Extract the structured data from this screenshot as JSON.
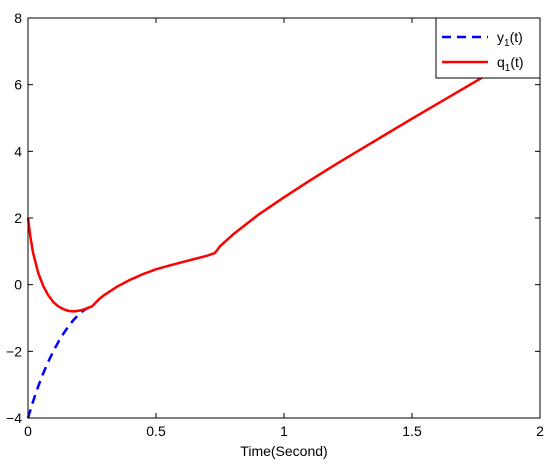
{
  "chart_data": {
    "type": "line",
    "title": "",
    "xlabel": "Time(Second)",
    "ylabel": "",
    "xlim": [
      0,
      2
    ],
    "ylim": [
      -4,
      8
    ],
    "x_ticks": [
      0,
      0.5,
      1,
      1.5,
      2
    ],
    "x_tick_labels": [
      "0",
      "0.5",
      "1",
      "1.5",
      "2"
    ],
    "y_ticks": [
      -4,
      -2,
      0,
      2,
      4,
      6,
      8
    ],
    "y_tick_labels": [
      "−4",
      "−2",
      "0",
      "2",
      "4",
      "6",
      "8"
    ],
    "grid": false,
    "legend_position": "top-right",
    "series": [
      {
        "name": "y_1(t)",
        "legend_base": "y",
        "legend_sub": "1",
        "legend_tail": "(t)",
        "color": "#0000ff",
        "style": "dashed",
        "x": [
          0.0,
          0.02,
          0.04,
          0.06,
          0.08,
          0.1,
          0.12,
          0.14,
          0.16,
          0.18,
          0.2,
          0.22,
          0.24,
          0.25
        ],
        "y": [
          -4.0,
          -3.5,
          -3.05,
          -2.65,
          -2.3,
          -1.98,
          -1.7,
          -1.45,
          -1.23,
          -1.04,
          -0.88,
          -0.76,
          -0.67,
          -0.65
        ]
      },
      {
        "name": "q_1(t)",
        "legend_base": "q",
        "legend_sub": "1",
        "legend_tail": "(t)",
        "color": "#ff0000",
        "style": "solid",
        "x": [
          0.0,
          0.01,
          0.02,
          0.04,
          0.06,
          0.08,
          0.1,
          0.12,
          0.14,
          0.16,
          0.18,
          0.2,
          0.22,
          0.24,
          0.25,
          0.28,
          0.3,
          0.35,
          0.4,
          0.45,
          0.5,
          0.55,
          0.6,
          0.65,
          0.7,
          0.73,
          0.75,
          0.8,
          0.9,
          1.0,
          1.1,
          1.2,
          1.3,
          1.4,
          1.5,
          1.6,
          1.7,
          1.8,
          1.9,
          2.0
        ],
        "y": [
          2.0,
          1.4,
          0.95,
          0.35,
          -0.05,
          -0.33,
          -0.53,
          -0.66,
          -0.74,
          -0.79,
          -0.8,
          -0.78,
          -0.74,
          -0.68,
          -0.65,
          -0.42,
          -0.3,
          -0.05,
          0.15,
          0.32,
          0.46,
          0.57,
          0.67,
          0.77,
          0.87,
          0.95,
          1.15,
          1.5,
          2.1,
          2.62,
          3.12,
          3.6,
          4.06,
          4.52,
          4.98,
          5.43,
          5.88,
          6.33,
          6.75,
          7.1
        ]
      }
    ]
  }
}
